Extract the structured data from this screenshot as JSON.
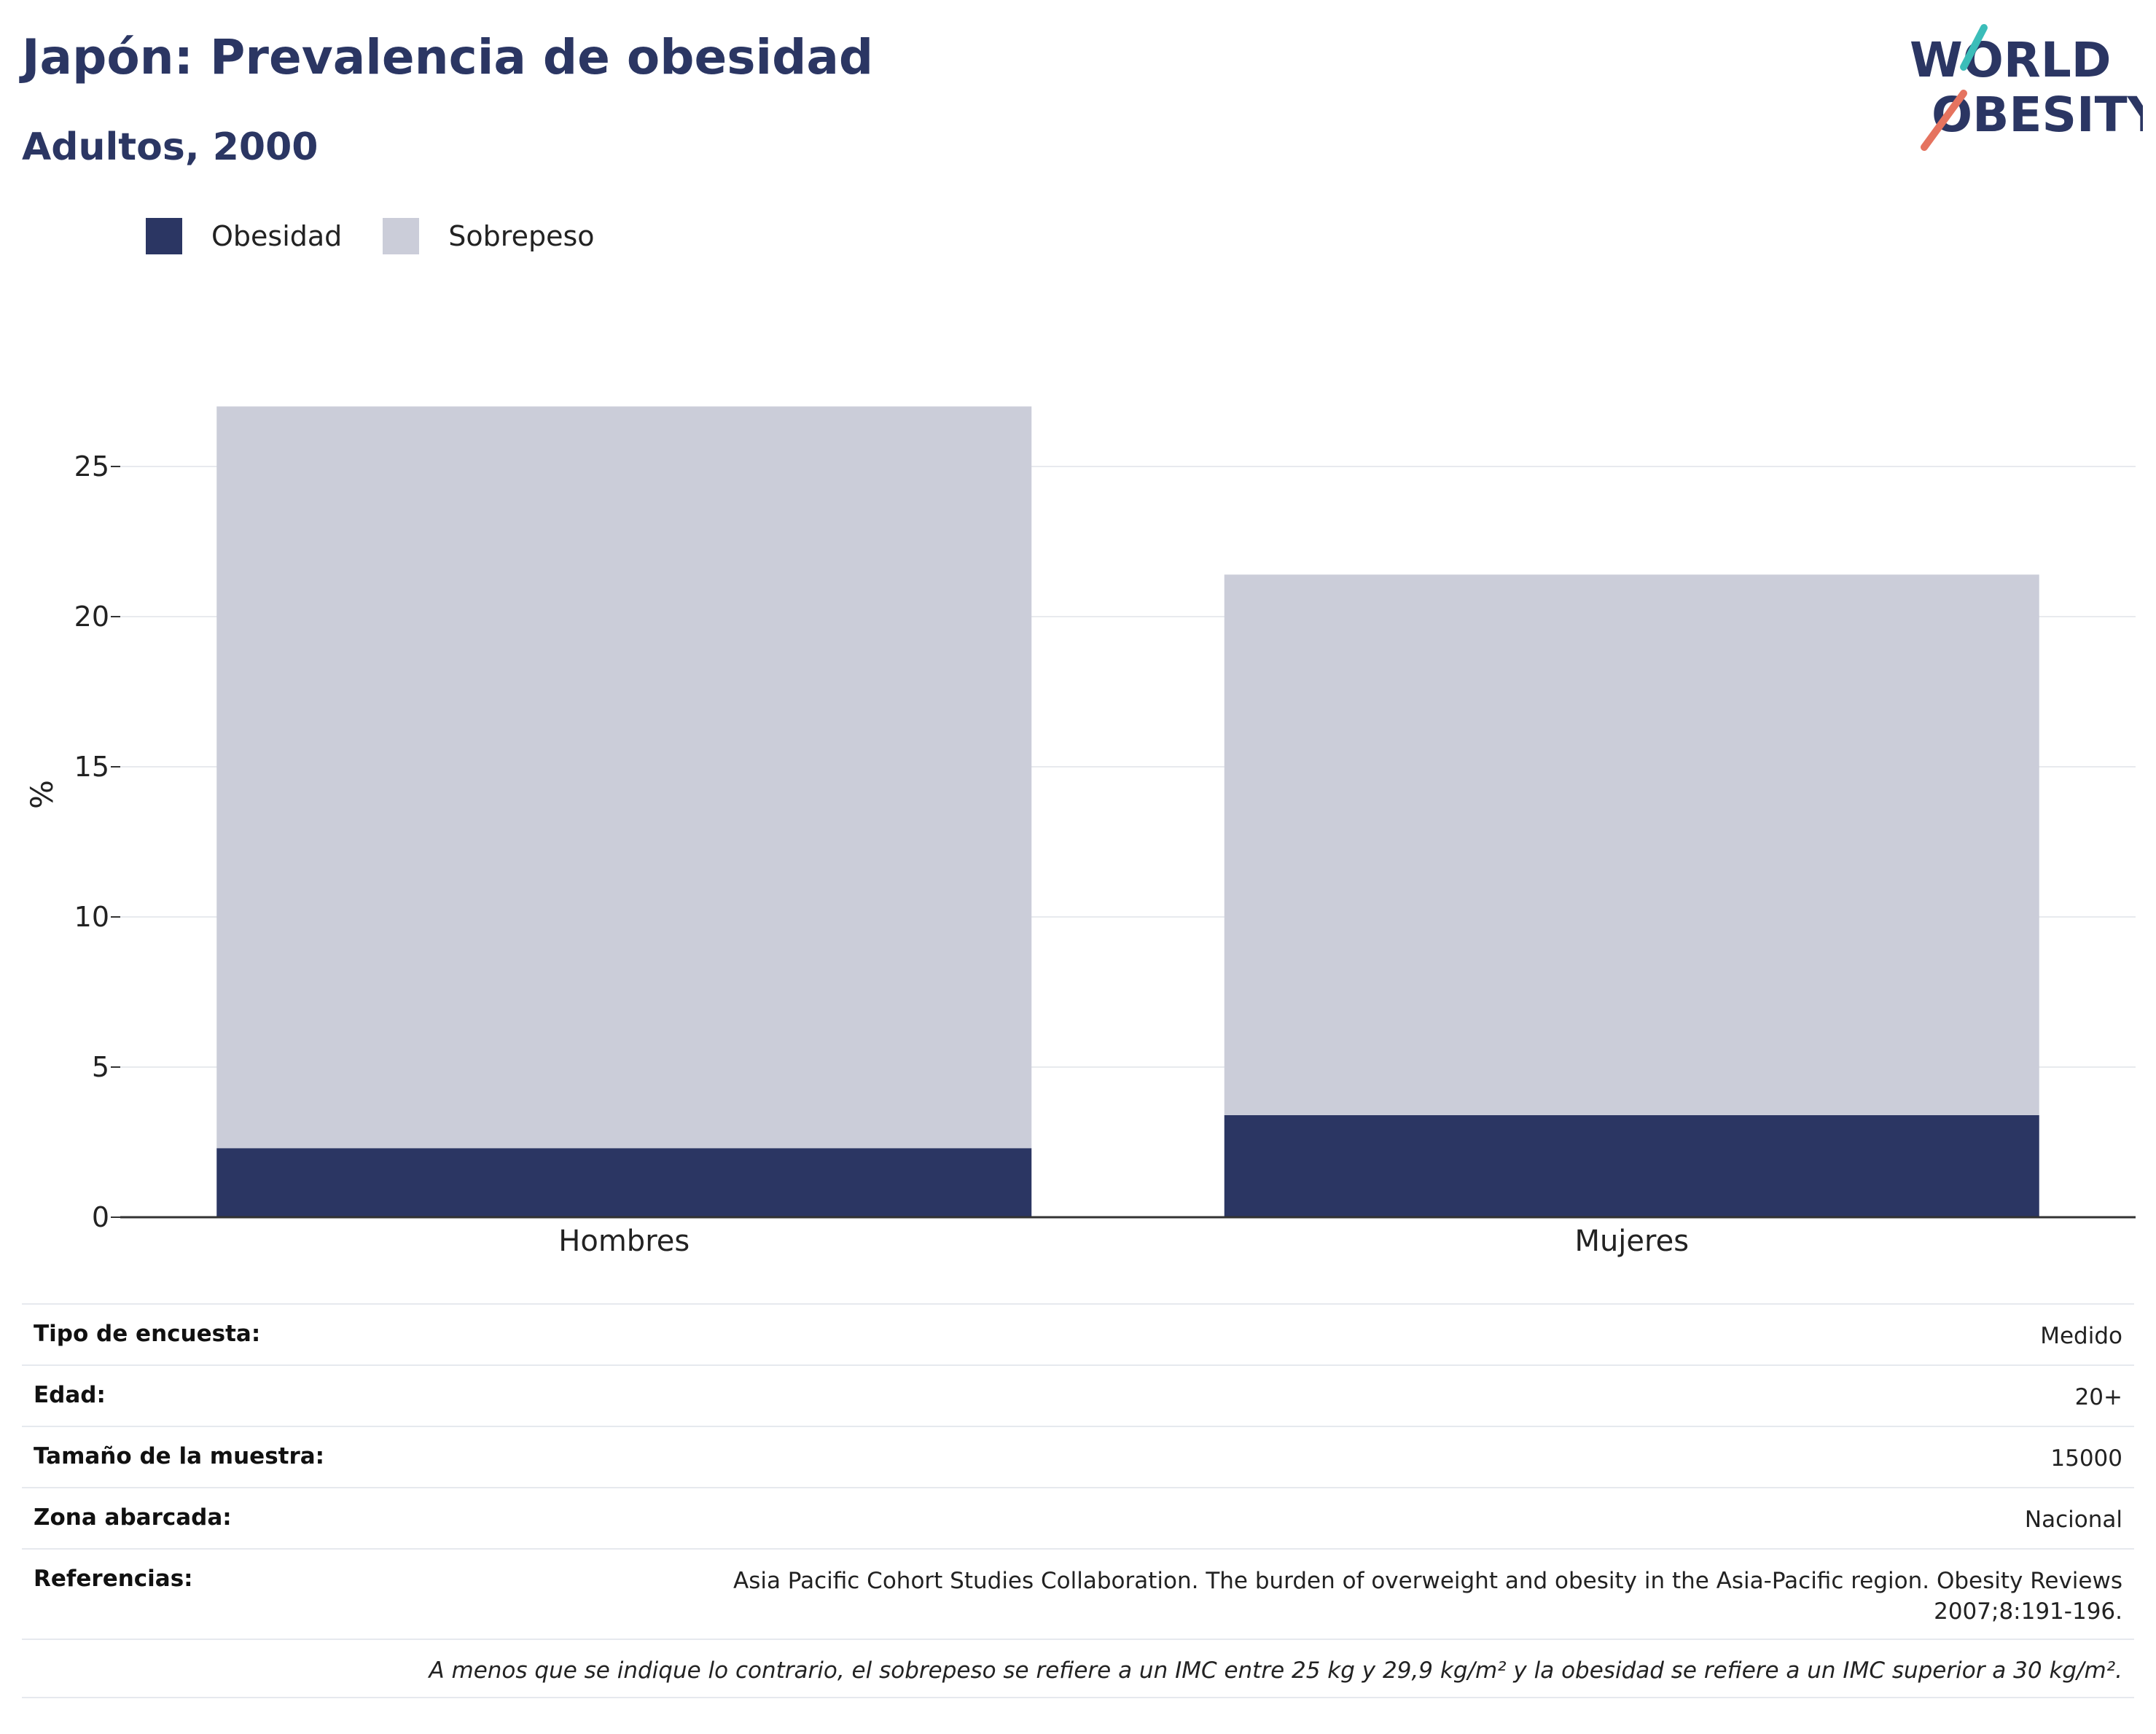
{
  "header": {
    "title": "Japón: Prevalencia de obesidad",
    "subtitle": "Adultos, 2000"
  },
  "logo": {
    "line1": "WORLD",
    "line2": "OBESITY"
  },
  "colors": {
    "obesity": "#2b3663",
    "overweight": "#cbcdd9",
    "grid": "#e8eaee",
    "axis": "#333333",
    "logo_teal": "#3bbdb9",
    "logo_coral": "#e5735f"
  },
  "chart_data": {
    "type": "bar",
    "stacked": true,
    "categories": [
      "Hombres",
      "Mujeres"
    ],
    "series": [
      {
        "name": "Obesidad",
        "values": [
          2.3,
          3.4
        ]
      },
      {
        "name": "Sobrepeso",
        "values": [
          24.7,
          18.0
        ]
      }
    ],
    "ylabel": "%",
    "ylim": [
      0,
      27
    ],
    "yticks": [
      0,
      5,
      10,
      15,
      20,
      25
    ],
    "grid": true,
    "legend": "top-left"
  },
  "meta": {
    "rows": [
      {
        "label": "Tipo de encuesta:",
        "value": "Medido"
      },
      {
        "label": "Edad:",
        "value": "20+"
      },
      {
        "label": "Tamaño de la muestra:",
        "value": "15000"
      },
      {
        "label": "Zona abarcada:",
        "value": "Nacional"
      },
      {
        "label": "Referencias:",
        "value": "Asia Pacific Cohort Studies Collaboration. The burden of overweight and obesity in the Asia-Pacific region. Obesity Reviews 2007;8:191-196."
      }
    ],
    "note": "A menos que se indique lo contrario, el sobrepeso se refiere a un IMC entre 25 kg y 29,9 kg/m² y la obesidad se refiere a un IMC superior a 30 kg/m²."
  }
}
